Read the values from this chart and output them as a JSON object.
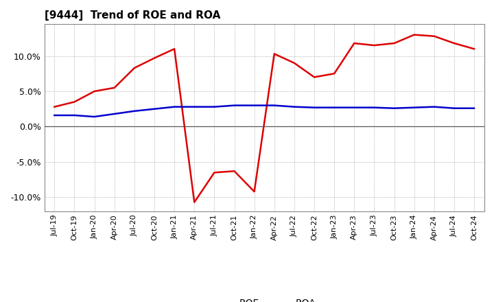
{
  "title": "[9444]  Trend of ROE and ROA",
  "ylim": [
    -0.12,
    0.145
  ],
  "yticks": [
    -0.1,
    -0.05,
    0.0,
    0.05,
    0.1
  ],
  "background_color": "#ffffff",
  "plot_bg_color": "#ffffff",
  "grid_color": "#999999",
  "roe_color": "#dd0000",
  "roa_color": "#0000cc",
  "line_width": 1.8,
  "roe": [
    0.028,
    0.035,
    0.05,
    0.055,
    0.083,
    0.097,
    0.11,
    -0.107,
    -0.065,
    -0.063,
    -0.092,
    0.103,
    0.09,
    0.07,
    0.075,
    0.118,
    0.115,
    0.118,
    0.13,
    0.128,
    0.118,
    0.11
  ],
  "roa": [
    0.016,
    0.016,
    0.014,
    0.018,
    0.022,
    0.025,
    0.028,
    0.028,
    0.028,
    0.03,
    0.03,
    0.03,
    0.028,
    0.027,
    0.027,
    0.027,
    0.027,
    0.026,
    0.027,
    0.028,
    0.026,
    0.026
  ],
  "xtick_labels": [
    "Jul-19",
    "Oct-19",
    "Jan-20",
    "Apr-20",
    "Jul-20",
    "Oct-20",
    "Jan-21",
    "Apr-21",
    "Jul-21",
    "Oct-21",
    "Jan-22",
    "Apr-22",
    "Jul-22",
    "Oct-22",
    "Jan-23",
    "Apr-23",
    "Jul-23",
    "Oct-23",
    "Jan-24",
    "Apr-24",
    "Jul-24",
    "Oct-24"
  ],
  "title_fontsize": 11,
  "tick_fontsize": 8,
  "legend_fontsize": 10
}
